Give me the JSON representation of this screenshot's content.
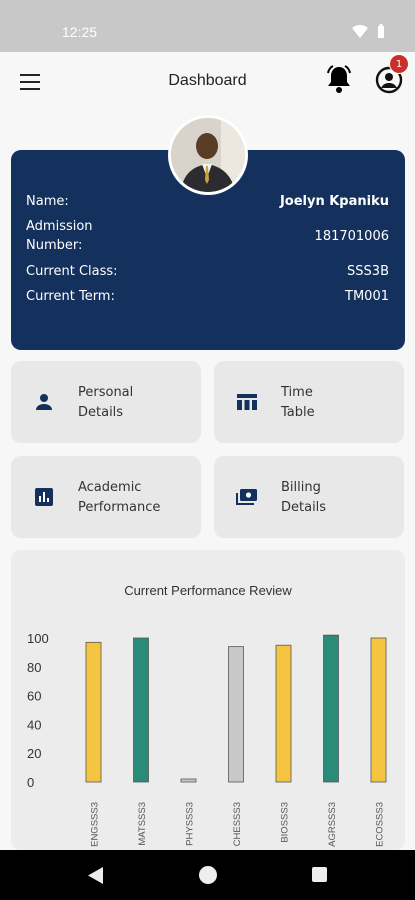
{
  "status": {
    "time": "12:25"
  },
  "app_bar": {
    "title": "Dashboard",
    "notification_count": "1"
  },
  "profile": {
    "rows": [
      {
        "label": "Name:",
        "value": "Joelyn Kpaniku"
      },
      {
        "label": "Admission\nNumber:",
        "value": "181701006"
      },
      {
        "label": "Current Class:",
        "value": "SSS3B"
      },
      {
        "label": "Current Term:",
        "value": "TM001"
      }
    ]
  },
  "tiles": [
    {
      "label": "Personal\nDetails",
      "icon": "person-icon"
    },
    {
      "label": "Time\nTable",
      "icon": "table-icon"
    },
    {
      "label": "Academic\nPerformance",
      "icon": "bar-chart-icon"
    },
    {
      "label": "Billing\nDetails",
      "icon": "payments-icon"
    }
  ],
  "colors": {
    "primary": "#14305c",
    "yellow": "#f5c542",
    "teal": "#2a8c78",
    "gray": "#c8c8c8",
    "badge": "#c9302c"
  },
  "chart_data": {
    "type": "bar",
    "title": "Current Performance Review",
    "categories": [
      "ENGSSS3",
      "MATSSS3",
      "PHYSSS3",
      "CHESSS3",
      "BIOSSS3",
      "AGRSSS3",
      "ECOSSS3"
    ],
    "values": [
      97,
      100,
      2,
      94,
      95,
      102,
      100
    ],
    "bar_colors": [
      "#f5c542",
      "#2a8c78",
      "#c8c8c8",
      "#c8c8c8",
      "#f5c542",
      "#2a8c78",
      "#f5c542"
    ],
    "ylim": [
      0,
      100
    ],
    "yticks": [
      0,
      20,
      40,
      60,
      80,
      100
    ],
    "grid": false,
    "legend": "none"
  }
}
